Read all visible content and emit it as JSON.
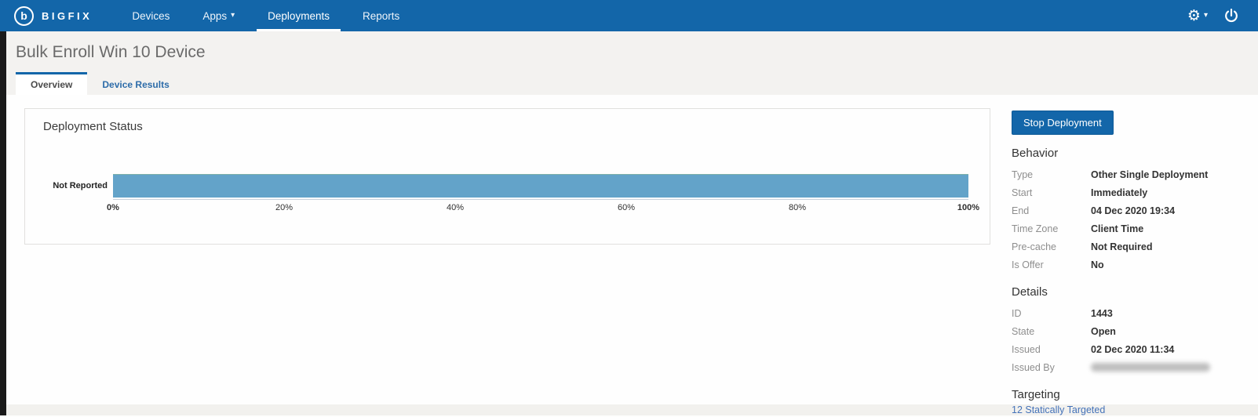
{
  "nav": {
    "brand": "BIGFIX",
    "brand_initial": "b",
    "items": [
      {
        "label": "Devices",
        "active": false
      },
      {
        "label": "Apps",
        "active": false,
        "caret": "▾"
      },
      {
        "label": "Deployments",
        "active": true
      },
      {
        "label": "Reports",
        "active": false
      }
    ],
    "gear_glyph": "⚙",
    "gear_caret": "▾"
  },
  "page": {
    "title": "Bulk Enroll Win 10 Device"
  },
  "tabs": [
    {
      "label": "Overview",
      "active": true
    },
    {
      "label": "Device Results",
      "active": false
    }
  ],
  "chart_data": {
    "type": "bar",
    "orientation": "horizontal",
    "title": "Deployment Status",
    "categories": [
      "Not Reported"
    ],
    "values": [
      100
    ],
    "xlabel": "",
    "ylabel": "",
    "xlim": [
      0,
      100
    ],
    "x_ticks": [
      "0%",
      "20%",
      "40%",
      "60%",
      "80%",
      "100%"
    ],
    "grid": false,
    "legend": false,
    "bar_color": "#63a3c9"
  },
  "side_panel": {
    "stop_button": "Stop Deployment",
    "behavior": {
      "heading": "Behavior",
      "rows": [
        {
          "label": "Type",
          "value": "Other Single Deployment"
        },
        {
          "label": "Start",
          "value": "Immediately"
        },
        {
          "label": "End",
          "value": "04 Dec 2020 19:34"
        },
        {
          "label": "Time Zone",
          "value": "Client Time"
        },
        {
          "label": "Pre-cache",
          "value": "Not Required"
        },
        {
          "label": "Is Offer",
          "value": "No"
        }
      ]
    },
    "details": {
      "heading": "Details",
      "rows": [
        {
          "label": "ID",
          "value": "1443"
        },
        {
          "label": "State",
          "value": "Open"
        },
        {
          "label": "Issued",
          "value": "02 Dec 2020 11:34"
        },
        {
          "label": "Issued By",
          "value": "",
          "redacted": true
        }
      ]
    },
    "targeting": {
      "heading": "Targeting",
      "link": "12 Statically Targeted"
    }
  },
  "colors": {
    "nav_bg": "#1366a9",
    "accent": "#1366a9",
    "bar": "#63a3c9",
    "link": "#4472b8",
    "header_bg": "#f3f2f0"
  }
}
